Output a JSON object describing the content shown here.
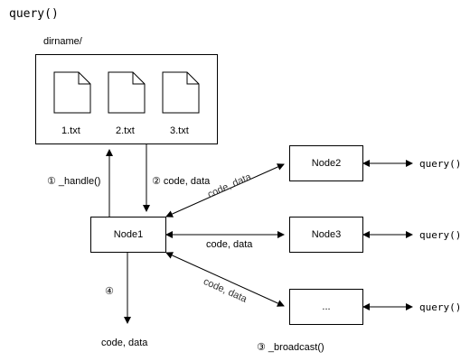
{
  "title": "query()",
  "folder": {
    "label": "dirname/",
    "files": [
      "1.txt",
      "2.txt",
      "3.txt"
    ]
  },
  "nodes": {
    "node1": "Node1",
    "node2": "Node2",
    "node3": "Node3",
    "node4": "..."
  },
  "edges": {
    "handle": "① _handle()",
    "code_data_down": "② code, data",
    "code_data_n2": "code, data",
    "code_data_n3": "code, data",
    "code_data_n4": "code, data",
    "step4": "④",
    "output": "code, data",
    "broadcast": "③ _broadcast()"
  },
  "queries": [
    "query()",
    "query()",
    "query()"
  ]
}
